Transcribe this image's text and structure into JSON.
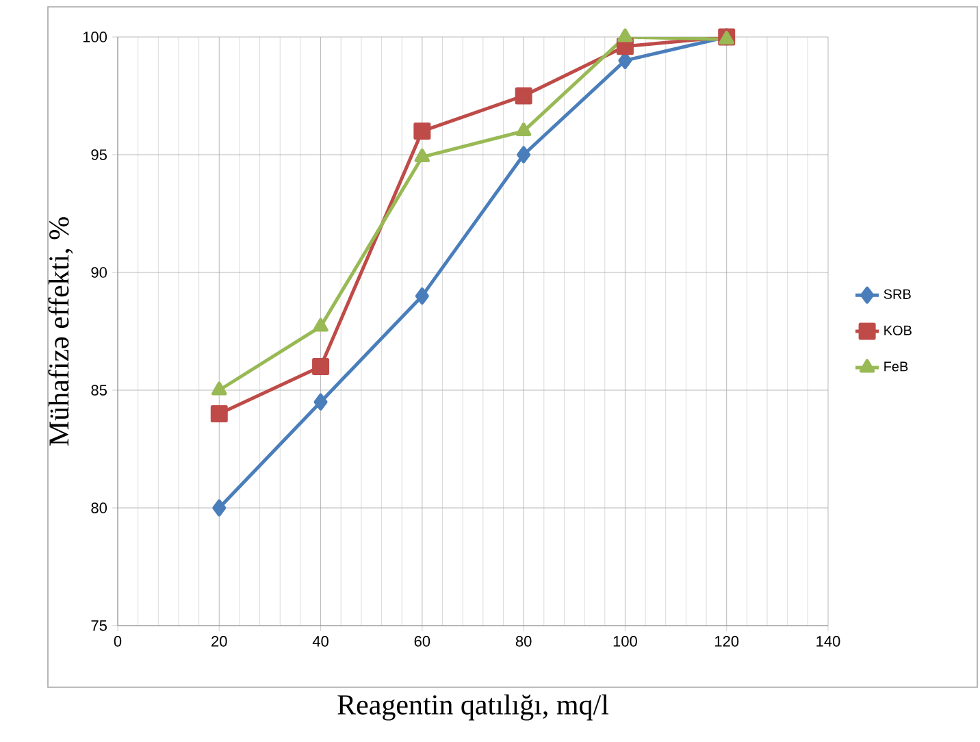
{
  "chart_data": {
    "type": "line",
    "xlabel": "Reagentin qatılığı, mq/l",
    "ylabel": "Mühafizə effekti, %",
    "xlim": [
      0,
      140
    ],
    "xticks": [
      0,
      20,
      40,
      60,
      80,
      100,
      120,
      140
    ],
    "ylim": [
      75,
      100
    ],
    "yticks": [
      75,
      80,
      85,
      90,
      95,
      100
    ],
    "x": [
      20,
      40,
      60,
      80,
      100,
      120
    ],
    "series": [
      {
        "name": "SRB",
        "color": "#4a7ebb",
        "marker": "diamond",
        "values": [
          80,
          84.5,
          89,
          95,
          99,
          100
        ]
      },
      {
        "name": "KOB",
        "color": "#be4b48",
        "marker": "square",
        "values": [
          84,
          86,
          96,
          97.5,
          99.6,
          100
        ]
      },
      {
        "name": "FeB",
        "color": "#98b954",
        "marker": "triangle",
        "values": [
          85,
          87.7,
          94.9,
          96,
          100,
          99.9
        ]
      }
    ],
    "grid": true,
    "legend": "right",
    "line_style": "solid"
  }
}
